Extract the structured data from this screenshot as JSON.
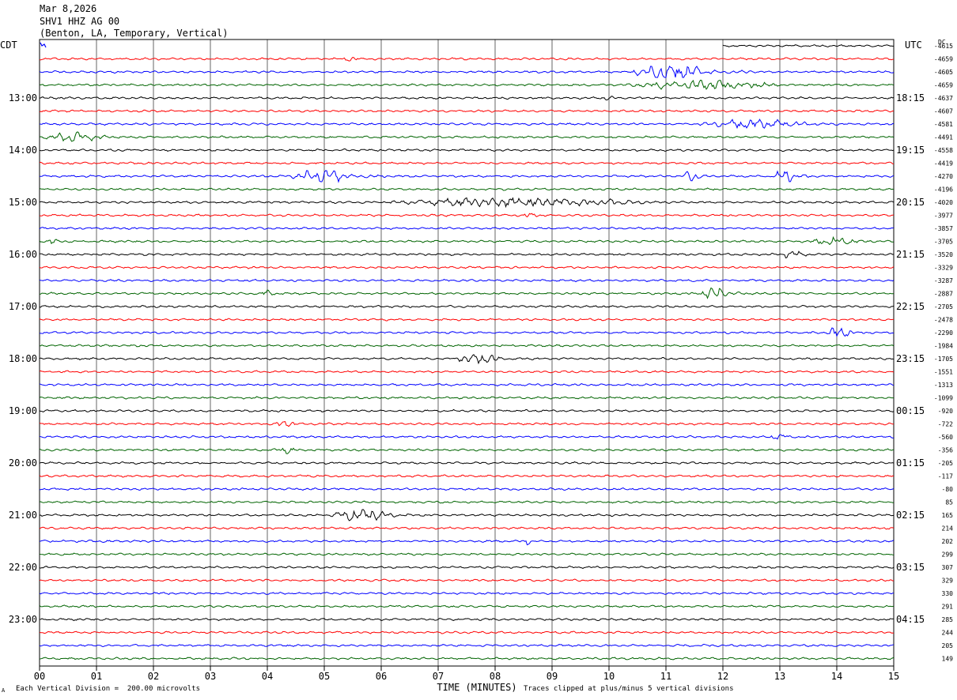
{
  "header": {
    "date": "Mar 8,2026",
    "station": "SHV1 HHZ AG 00",
    "location": "(Benton, LA, Temporary, Vertical)"
  },
  "left_timezone": "CDT",
  "right_timezone": "UTC",
  "dc_label": "DC",
  "footer": {
    "scale_note": "Each Vertical Division =  200.00 microvolts",
    "scale_marker": "A",
    "xlabel": "TIME (MINUTES)",
    "clip_note": "Traces clipped at plus/minus 5 vertical divisions"
  },
  "colors": {
    "trace_cycle": [
      "#000000",
      "#ff0000",
      "#0000ff",
      "#006400"
    ],
    "grid": "#000000"
  },
  "chart_data": {
    "type": "line",
    "xlabel": "TIME (MINUTES)",
    "x_ticks": [
      "00",
      "01",
      "02",
      "03",
      "04",
      "05",
      "06",
      "07",
      "08",
      "09",
      "10",
      "11",
      "12",
      "13",
      "14",
      "15"
    ],
    "xlim": [
      0,
      15
    ],
    "row_minutes": 15,
    "rows_per_hour": 4,
    "left_hour_labels": [
      "13:00",
      "14:00",
      "15:00",
      "16:00",
      "17:00",
      "18:00",
      "19:00",
      "20:00",
      "21:00",
      "22:00",
      "23:00"
    ],
    "right_hour_labels": [
      "18:15",
      "19:15",
      "20:15",
      "21:15",
      "22:15",
      "23:15",
      "00:15",
      "01:15",
      "02:15",
      "03:15",
      "04:15"
    ],
    "dc_offsets": [
      "-4615",
      "-4659",
      "-4605",
      "-4659",
      "-4637",
      "-4607",
      "-4581",
      "-4491",
      "-4558",
      "-4419",
      "-4270",
      "-4196",
      "-4020",
      "-3977",
      "-3857",
      "-3705",
      "-3520",
      "-3329",
      "-3287",
      "-2887",
      "-2705",
      "-2478",
      "-2290",
      "-1984",
      "-1705",
      "-1551",
      "-1313",
      "-1099",
      "-920",
      "-722",
      "-560",
      "-356",
      "-205",
      "-117",
      "-80",
      "85",
      "165",
      "214",
      "202",
      "299",
      "307",
      "329",
      "330",
      "291",
      "285",
      "244",
      "205",
      "149"
    ],
    "events": [
      {
        "row": 1,
        "start": 5.3,
        "end": 5.9,
        "amp": 2.0
      },
      {
        "row": 2,
        "start": 10.4,
        "end": 12.5,
        "amp": 5.0
      },
      {
        "row": 3,
        "start": 10.2,
        "end": 14.8,
        "amp": 2.5
      },
      {
        "row": 4,
        "start": 9.8,
        "end": 10.4,
        "amp": 1.5
      },
      {
        "row": 6,
        "start": 11.5,
        "end": 15.0,
        "amp": 2.5
      },
      {
        "row": 7,
        "start": 0.0,
        "end": 2.0,
        "amp": 2.5
      },
      {
        "row": 10,
        "start": 4.4,
        "end": 6.2,
        "amp": 4.0
      },
      {
        "row": 10,
        "start": 11.3,
        "end": 11.8,
        "amp": 3.0
      },
      {
        "row": 10,
        "start": 12.9,
        "end": 13.5,
        "amp": 4.0
      },
      {
        "row": 12,
        "start": 6.0,
        "end": 13.8,
        "amp": 2.5
      },
      {
        "row": 13,
        "start": 8.5,
        "end": 8.9,
        "amp": 2.0
      },
      {
        "row": 15,
        "start": 0.1,
        "end": 0.5,
        "amp": 2.5
      },
      {
        "row": 15,
        "start": 13.5,
        "end": 15.0,
        "amp": 2.5
      },
      {
        "row": 16,
        "start": 13.0,
        "end": 13.8,
        "amp": 2.5
      },
      {
        "row": 19,
        "start": 11.6,
        "end": 12.4,
        "amp": 4.0
      },
      {
        "row": 19,
        "start": 3.8,
        "end": 4.4,
        "amp": 2.0
      },
      {
        "row": 22,
        "start": 13.8,
        "end": 14.6,
        "amp": 3.0
      },
      {
        "row": 24,
        "start": 7.3,
        "end": 8.6,
        "amp": 3.0
      },
      {
        "row": 29,
        "start": 4.1,
        "end": 4.8,
        "amp": 2.0
      },
      {
        "row": 30,
        "start": 12.8,
        "end": 13.4,
        "amp": 2.0
      },
      {
        "row": 31,
        "start": 4.1,
        "end": 4.9,
        "amp": 2.0
      },
      {
        "row": 36,
        "start": 5.1,
        "end": 7.0,
        "amp": 3.5
      },
      {
        "row": 38,
        "start": 8.5,
        "end": 8.7,
        "amp": 2.0
      }
    ]
  }
}
